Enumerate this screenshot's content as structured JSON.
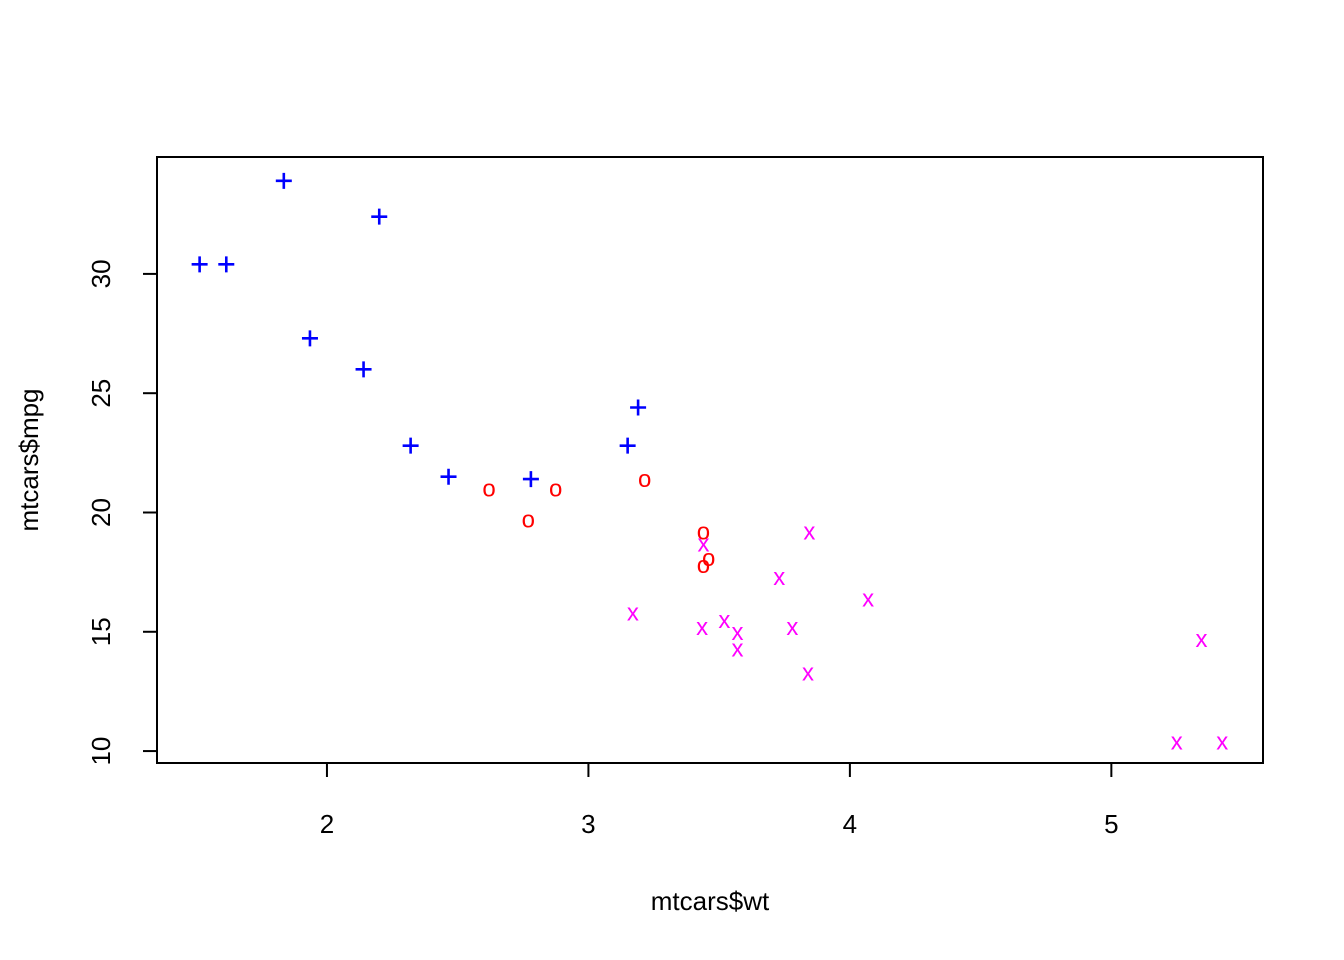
{
  "chart_data": {
    "type": "scatter",
    "title": "",
    "xlabel": "mtcars$wt",
    "ylabel": "mtcars$mpg",
    "xlim": [
      1.35,
      5.58
    ],
    "ylim": [
      9.5,
      34.9
    ],
    "xticks": [
      2,
      3,
      4,
      5
    ],
    "yticks": [
      10,
      15,
      20,
      25,
      30
    ],
    "grid": false,
    "legend": "none",
    "series": [
      {
        "symbol": "+",
        "color": "#0000FF",
        "points": [
          [
            2.32,
            22.8
          ],
          [
            3.19,
            24.4
          ],
          [
            3.15,
            22.8
          ],
          [
            2.2,
            32.4
          ],
          [
            1.615,
            30.4
          ],
          [
            1.835,
            33.9
          ],
          [
            2.465,
            21.5
          ],
          [
            1.935,
            27.3
          ],
          [
            2.14,
            26.0
          ],
          [
            1.513,
            30.4
          ],
          [
            2.78,
            21.4
          ]
        ]
      },
      {
        "symbol": "o",
        "color": "#FF0000",
        "points": [
          [
            2.62,
            21.0
          ],
          [
            2.875,
            21.0
          ],
          [
            3.215,
            21.4
          ],
          [
            3.46,
            18.1
          ],
          [
            3.44,
            19.2
          ],
          [
            3.44,
            17.8
          ],
          [
            2.77,
            19.7
          ]
        ]
      },
      {
        "symbol": "x",
        "color": "#FF00FF",
        "points": [
          [
            3.44,
            18.7
          ],
          [
            3.57,
            14.3
          ],
          [
            4.07,
            16.4
          ],
          [
            3.73,
            17.3
          ],
          [
            3.78,
            15.2
          ],
          [
            5.25,
            10.4
          ],
          [
            5.424,
            10.4
          ],
          [
            5.345,
            14.7
          ],
          [
            3.52,
            15.5
          ],
          [
            3.435,
            15.2
          ],
          [
            3.84,
            13.3
          ],
          [
            3.845,
            19.2
          ],
          [
            3.17,
            15.8
          ],
          [
            3.57,
            15.0
          ]
        ]
      }
    ]
  }
}
